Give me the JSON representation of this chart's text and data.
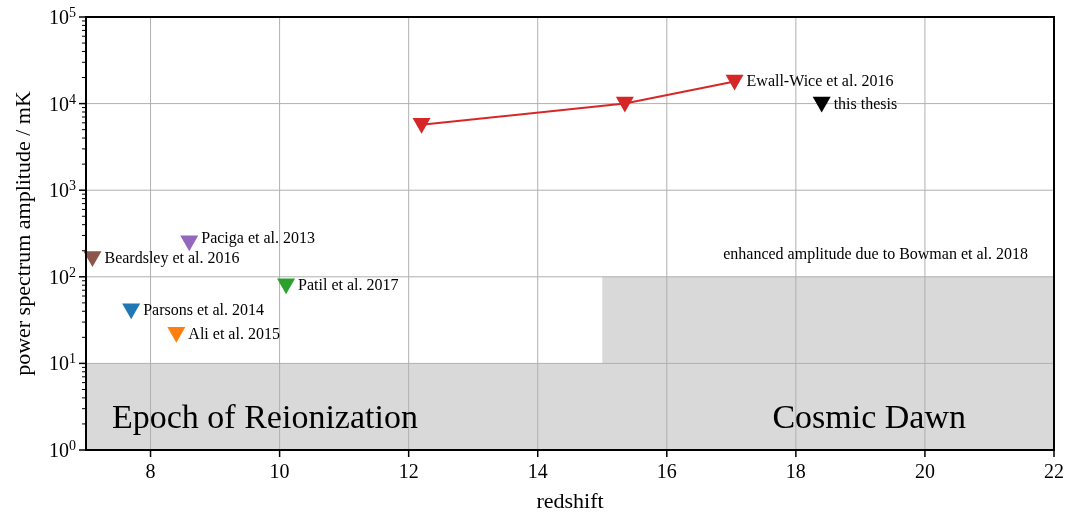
{
  "chart_data": {
    "type": "scatter",
    "xlabel": "redshift",
    "ylabel": "power spectrum amplitude / mK",
    "log": "y",
    "grid": true,
    "xlim": [
      7,
      22
    ],
    "xticks": [
      8,
      10,
      12,
      14,
      16,
      18,
      20,
      22
    ],
    "ylim": [
      1,
      100000
    ],
    "yticks": [
      {
        "value": 1,
        "label": "10$^{0}$"
      },
      {
        "value": 10,
        "label": "10$^{1}$"
      },
      {
        "value": 100,
        "label": "10$^{2}$"
      },
      {
        "value": 1000,
        "label": "10$^{3}$"
      },
      {
        "value": 10000,
        "label": "10$^{4}$"
      },
      {
        "value": 100000,
        "label": "10$^{5}$"
      }
    ],
    "series": [
      {
        "type": "area",
        "color": "#d9d9d9",
        "x": [
          7,
          15,
          15,
          22
        ],
        "values": [
          10,
          10,
          100,
          100
        ]
      },
      {
        "name": "Beardsley et al. 2016",
        "marker": "triangle",
        "color": "#8c564b",
        "x": [
          7.1
        ],
        "values": [
          165
        ]
      },
      {
        "name": "Paciga et al. 2013",
        "marker": "triangle",
        "color": "#9467bd",
        "x": [
          8.6
        ],
        "values": [
          250
        ]
      },
      {
        "name": "Patil et al. 2017",
        "marker": "triangle",
        "color": "#2ca02c",
        "x": [
          10.1
        ],
        "values": [
          80
        ]
      },
      {
        "name": "Parsons et al. 2014",
        "marker": "triangle",
        "color": "#1f77b4",
        "x": [
          7.7
        ],
        "values": [
          41
        ]
      },
      {
        "name": "Ali et al. 2015",
        "marker": "triangle",
        "color": "#ff7f0e",
        "x": [
          8.4
        ],
        "values": [
          22
        ]
      },
      {
        "name": "Ewall-Wice et al. 2016",
        "marker": "triangle",
        "type": "line",
        "color": "#d62728",
        "x": [
          12.2,
          15.35,
          17.05
        ],
        "values": [
          5700,
          10000,
          18000
        ]
      },
      {
        "name": "this thesis",
        "marker": "triangle",
        "color": "#000000",
        "x": [
          18.4
        ],
        "values": [
          10000
        ]
      }
    ],
    "annotations": [
      "Epoch of Reionization",
      "Cosmic Dawn",
      "enhanced amplitude due to Bowman et al. 2018"
    ]
  }
}
